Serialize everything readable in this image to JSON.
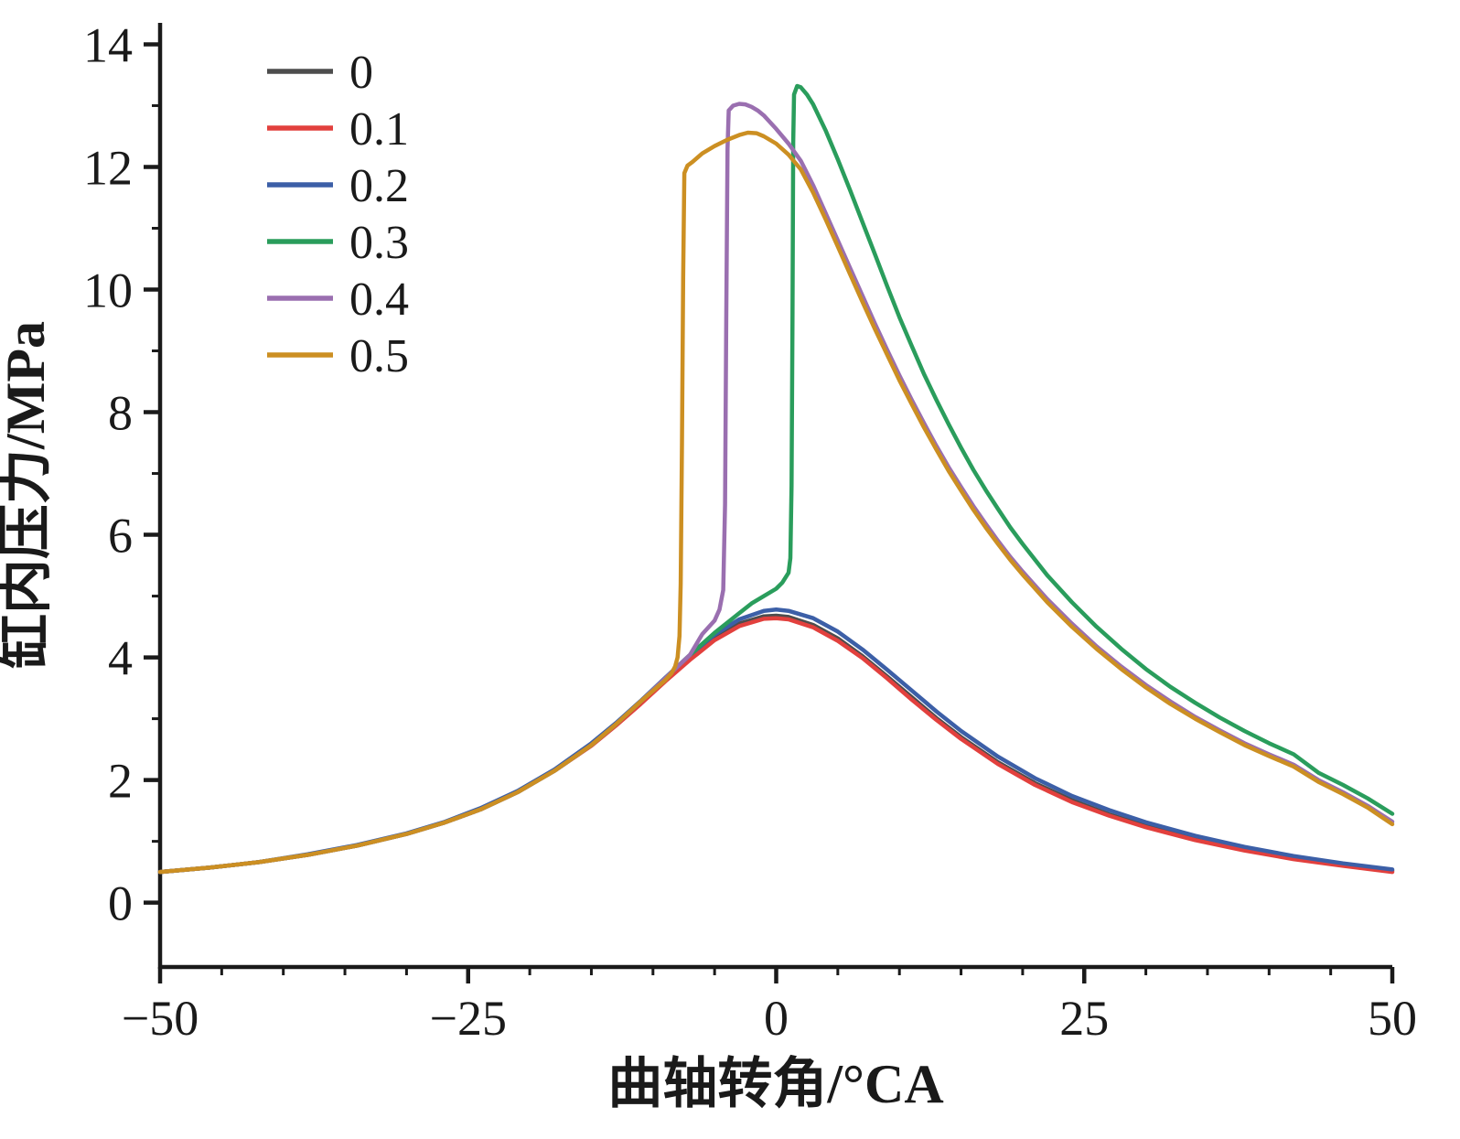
{
  "chart_data": {
    "type": "line",
    "title": "",
    "xlabel": "曲轴转角/°CA",
    "ylabel": "缸内压力/MPa",
    "xlim": [
      -50,
      50
    ],
    "ylim": [
      -1.05,
      14.35
    ],
    "x_ticks": [
      -50,
      -25,
      0,
      25,
      50
    ],
    "y_ticks": [
      0,
      2,
      4,
      6,
      8,
      10,
      12,
      14
    ],
    "x_minor_step": 5,
    "y_minor_step": 1,
    "grid": false,
    "legend_position": "top-left",
    "axis_color": "#1a1a1a",
    "series": [
      {
        "name": "0",
        "color": "#4d4d4d",
        "points": [
          [
            -50,
            0.5
          ],
          [
            -46,
            0.57
          ],
          [
            -42,
            0.66
          ],
          [
            -38,
            0.78
          ],
          [
            -34,
            0.93
          ],
          [
            -30,
            1.12
          ],
          [
            -27,
            1.3
          ],
          [
            -24,
            1.52
          ],
          [
            -21,
            1.8
          ],
          [
            -18,
            2.15
          ],
          [
            -15,
            2.57
          ],
          [
            -13,
            2.9
          ],
          [
            -11,
            3.26
          ],
          [
            -9,
            3.63
          ],
          [
            -7,
            3.99
          ],
          [
            -5,
            4.31
          ],
          [
            -3,
            4.55
          ],
          [
            -1,
            4.67
          ],
          [
            0,
            4.68
          ],
          [
            1,
            4.66
          ],
          [
            3,
            4.53
          ],
          [
            5,
            4.31
          ],
          [
            7,
            4.02
          ],
          [
            9,
            3.69
          ],
          [
            11,
            3.35
          ],
          [
            13,
            3.01
          ],
          [
            15,
            2.7
          ],
          [
            18,
            2.29
          ],
          [
            21,
            1.95
          ],
          [
            24,
            1.67
          ],
          [
            27,
            1.44
          ],
          [
            30,
            1.25
          ],
          [
            34,
            1.04
          ],
          [
            38,
            0.87
          ],
          [
            42,
            0.73
          ],
          [
            46,
            0.61
          ],
          [
            50,
            0.52
          ]
        ]
      },
      {
        "name": "0.1",
        "color": "#e2403d",
        "points": [
          [
            -50,
            0.5
          ],
          [
            -46,
            0.57
          ],
          [
            -42,
            0.66
          ],
          [
            -38,
            0.78
          ],
          [
            -34,
            0.93
          ],
          [
            -30,
            1.12
          ],
          [
            -27,
            1.3
          ],
          [
            -24,
            1.52
          ],
          [
            -21,
            1.8
          ],
          [
            -18,
            2.15
          ],
          [
            -15,
            2.56
          ],
          [
            -13,
            2.89
          ],
          [
            -11,
            3.24
          ],
          [
            -9,
            3.61
          ],
          [
            -7,
            3.96
          ],
          [
            -5,
            4.28
          ],
          [
            -3,
            4.51
          ],
          [
            -1,
            4.63
          ],
          [
            0,
            4.64
          ],
          [
            1,
            4.62
          ],
          [
            3,
            4.49
          ],
          [
            5,
            4.27
          ],
          [
            7,
            3.99
          ],
          [
            9,
            3.66
          ],
          [
            11,
            3.31
          ],
          [
            13,
            2.98
          ],
          [
            15,
            2.67
          ],
          [
            18,
            2.26
          ],
          [
            21,
            1.92
          ],
          [
            24,
            1.64
          ],
          [
            27,
            1.42
          ],
          [
            30,
            1.23
          ],
          [
            34,
            1.02
          ],
          [
            38,
            0.85
          ],
          [
            42,
            0.71
          ],
          [
            46,
            0.6
          ],
          [
            50,
            0.5
          ]
        ]
      },
      {
        "name": "0.2",
        "color": "#3c5fa7",
        "points": [
          [
            -50,
            0.5
          ],
          [
            -46,
            0.57
          ],
          [
            -42,
            0.66
          ],
          [
            -38,
            0.79
          ],
          [
            -34,
            0.94
          ],
          [
            -30,
            1.13
          ],
          [
            -27,
            1.31
          ],
          [
            -24,
            1.54
          ],
          [
            -21,
            1.82
          ],
          [
            -18,
            2.17
          ],
          [
            -15,
            2.6
          ],
          [
            -13,
            2.93
          ],
          [
            -11,
            3.29
          ],
          [
            -9,
            3.67
          ],
          [
            -7,
            4.04
          ],
          [
            -5,
            4.37
          ],
          [
            -3,
            4.62
          ],
          [
            -1,
            4.76
          ],
          [
            0,
            4.78
          ],
          [
            1,
            4.76
          ],
          [
            3,
            4.64
          ],
          [
            5,
            4.42
          ],
          [
            7,
            4.13
          ],
          [
            9,
            3.8
          ],
          [
            11,
            3.46
          ],
          [
            13,
            3.12
          ],
          [
            15,
            2.8
          ],
          [
            18,
            2.38
          ],
          [
            21,
            2.03
          ],
          [
            24,
            1.74
          ],
          [
            27,
            1.51
          ],
          [
            30,
            1.31
          ],
          [
            34,
            1.09
          ],
          [
            38,
            0.91
          ],
          [
            42,
            0.76
          ],
          [
            46,
            0.64
          ],
          [
            50,
            0.54
          ]
        ]
      },
      {
        "name": "0.3",
        "color": "#2a9d5c",
        "points": [
          [
            -50,
            0.5
          ],
          [
            -46,
            0.57
          ],
          [
            -42,
            0.66
          ],
          [
            -38,
            0.78
          ],
          [
            -34,
            0.93
          ],
          [
            -30,
            1.12
          ],
          [
            -27,
            1.3
          ],
          [
            -24,
            1.52
          ],
          [
            -21,
            1.8
          ],
          [
            -18,
            2.15
          ],
          [
            -15,
            2.57
          ],
          [
            -13,
            2.91
          ],
          [
            -11,
            3.28
          ],
          [
            -9,
            3.66
          ],
          [
            -7,
            4.04
          ],
          [
            -5,
            4.4
          ],
          [
            -3,
            4.72
          ],
          [
            -2,
            4.88
          ],
          [
            -1,
            5.0
          ],
          [
            0,
            5.12
          ],
          [
            0.5,
            5.22
          ],
          [
            1,
            5.38
          ],
          [
            1.15,
            5.62
          ],
          [
            1.25,
            6.8
          ],
          [
            1.32,
            9.5
          ],
          [
            1.38,
            12.4
          ],
          [
            1.45,
            13.18
          ],
          [
            1.7,
            13.32
          ],
          [
            2,
            13.3
          ],
          [
            2.5,
            13.18
          ],
          [
            3,
            13.02
          ],
          [
            4,
            12.6
          ],
          [
            5,
            12.12
          ],
          [
            6,
            11.62
          ],
          [
            7,
            11.1
          ],
          [
            8,
            10.58
          ],
          [
            9,
            10.06
          ],
          [
            10,
            9.55
          ],
          [
            11,
            9.08
          ],
          [
            12,
            8.62
          ],
          [
            13,
            8.2
          ],
          [
            14,
            7.8
          ],
          [
            15,
            7.42
          ],
          [
            16,
            7.06
          ],
          [
            17,
            6.73
          ],
          [
            18,
            6.42
          ],
          [
            19,
            6.12
          ],
          [
            20,
            5.85
          ],
          [
            22,
            5.34
          ],
          [
            24,
            4.9
          ],
          [
            26,
            4.5
          ],
          [
            28,
            4.14
          ],
          [
            30,
            3.81
          ],
          [
            32,
            3.52
          ],
          [
            34,
            3.26
          ],
          [
            36,
            3.02
          ],
          [
            38,
            2.8
          ],
          [
            40,
            2.6
          ],
          [
            42,
            2.42
          ],
          [
            44,
            2.12
          ],
          [
            46,
            1.92
          ],
          [
            48,
            1.7
          ],
          [
            50,
            1.45
          ]
        ]
      },
      {
        "name": "0.4",
        "color": "#9a6fb0",
        "points": [
          [
            -50,
            0.5
          ],
          [
            -46,
            0.57
          ],
          [
            -42,
            0.66
          ],
          [
            -38,
            0.78
          ],
          [
            -34,
            0.93
          ],
          [
            -30,
            1.12
          ],
          [
            -27,
            1.3
          ],
          [
            -24,
            1.52
          ],
          [
            -21,
            1.8
          ],
          [
            -18,
            2.15
          ],
          [
            -15,
            2.57
          ],
          [
            -13,
            2.91
          ],
          [
            -11,
            3.28
          ],
          [
            -9,
            3.66
          ],
          [
            -7,
            4.04
          ],
          [
            -6,
            4.38
          ],
          [
            -5,
            4.6
          ],
          [
            -4.6,
            4.78
          ],
          [
            -4.3,
            5.1
          ],
          [
            -4.15,
            6.5
          ],
          [
            -4.05,
            9.5
          ],
          [
            -3.95,
            12.3
          ],
          [
            -3.85,
            12.92
          ],
          [
            -3.5,
            13.0
          ],
          [
            -3,
            13.03
          ],
          [
            -2.5,
            13.02
          ],
          [
            -2,
            12.98
          ],
          [
            -1.5,
            12.92
          ],
          [
            -1,
            12.84
          ],
          [
            0,
            12.62
          ],
          [
            1,
            12.38
          ],
          [
            2,
            12.1
          ],
          [
            3,
            11.7
          ],
          [
            4,
            11.25
          ],
          [
            5,
            10.8
          ],
          [
            6,
            10.35
          ],
          [
            7,
            9.9
          ],
          [
            8,
            9.45
          ],
          [
            9,
            9.02
          ],
          [
            10,
            8.6
          ],
          [
            11,
            8.2
          ],
          [
            12,
            7.82
          ],
          [
            13,
            7.45
          ],
          [
            14,
            7.1
          ],
          [
            15,
            6.78
          ],
          [
            16,
            6.47
          ],
          [
            17,
            6.18
          ],
          [
            18,
            5.9
          ],
          [
            19,
            5.64
          ],
          [
            20,
            5.4
          ],
          [
            22,
            4.95
          ],
          [
            24,
            4.55
          ],
          [
            26,
            4.18
          ],
          [
            28,
            3.85
          ],
          [
            30,
            3.55
          ],
          [
            32,
            3.28
          ],
          [
            34,
            3.03
          ],
          [
            36,
            2.81
          ],
          [
            38,
            2.6
          ],
          [
            40,
            2.42
          ],
          [
            42,
            2.25
          ],
          [
            44,
            2.0
          ],
          [
            46,
            1.8
          ],
          [
            48,
            1.58
          ],
          [
            50,
            1.32
          ]
        ]
      },
      {
        "name": "0.5",
        "color": "#cc8f22",
        "points": [
          [
            -50,
            0.5
          ],
          [
            -46,
            0.57
          ],
          [
            -42,
            0.66
          ],
          [
            -38,
            0.78
          ],
          [
            -34,
            0.93
          ],
          [
            -30,
            1.12
          ],
          [
            -27,
            1.3
          ],
          [
            -24,
            1.52
          ],
          [
            -21,
            1.8
          ],
          [
            -18,
            2.15
          ],
          [
            -15,
            2.57
          ],
          [
            -13,
            2.91
          ],
          [
            -11,
            3.28
          ],
          [
            -9,
            3.63
          ],
          [
            -8.5,
            3.74
          ],
          [
            -8.2,
            3.85
          ],
          [
            -8,
            4.0
          ],
          [
            -7.85,
            4.35
          ],
          [
            -7.75,
            5.2
          ],
          [
            -7.65,
            7.5
          ],
          [
            -7.55,
            10.2
          ],
          [
            -7.45,
            11.9
          ],
          [
            -7.2,
            12.02
          ],
          [
            -6.8,
            12.08
          ],
          [
            -6,
            12.22
          ],
          [
            -5,
            12.34
          ],
          [
            -4,
            12.44
          ],
          [
            -3,
            12.52
          ],
          [
            -2.3,
            12.56
          ],
          [
            -1.6,
            12.55
          ],
          [
            -1,
            12.5
          ],
          [
            0,
            12.38
          ],
          [
            1,
            12.2
          ],
          [
            2,
            11.96
          ],
          [
            3,
            11.58
          ],
          [
            4,
            11.15
          ],
          [
            5,
            10.7
          ],
          [
            6,
            10.25
          ],
          [
            7,
            9.8
          ],
          [
            8,
            9.36
          ],
          [
            9,
            8.94
          ],
          [
            10,
            8.52
          ],
          [
            11,
            8.13
          ],
          [
            12,
            7.75
          ],
          [
            13,
            7.39
          ],
          [
            14,
            7.04
          ],
          [
            15,
            6.72
          ],
          [
            16,
            6.41
          ],
          [
            17,
            6.12
          ],
          [
            18,
            5.85
          ],
          [
            19,
            5.59
          ],
          [
            20,
            5.35
          ],
          [
            22,
            4.9
          ],
          [
            24,
            4.5
          ],
          [
            26,
            4.14
          ],
          [
            28,
            3.81
          ],
          [
            30,
            3.51
          ],
          [
            32,
            3.24
          ],
          [
            34,
            3.0
          ],
          [
            36,
            2.78
          ],
          [
            38,
            2.57
          ],
          [
            40,
            2.39
          ],
          [
            42,
            2.22
          ],
          [
            44,
            1.97
          ],
          [
            46,
            1.77
          ],
          [
            48,
            1.55
          ],
          [
            50,
            1.28
          ]
        ]
      }
    ],
    "legend_entries": [
      "0",
      "0.1",
      "0.2",
      "0.3",
      "0.4",
      "0.5"
    ]
  }
}
